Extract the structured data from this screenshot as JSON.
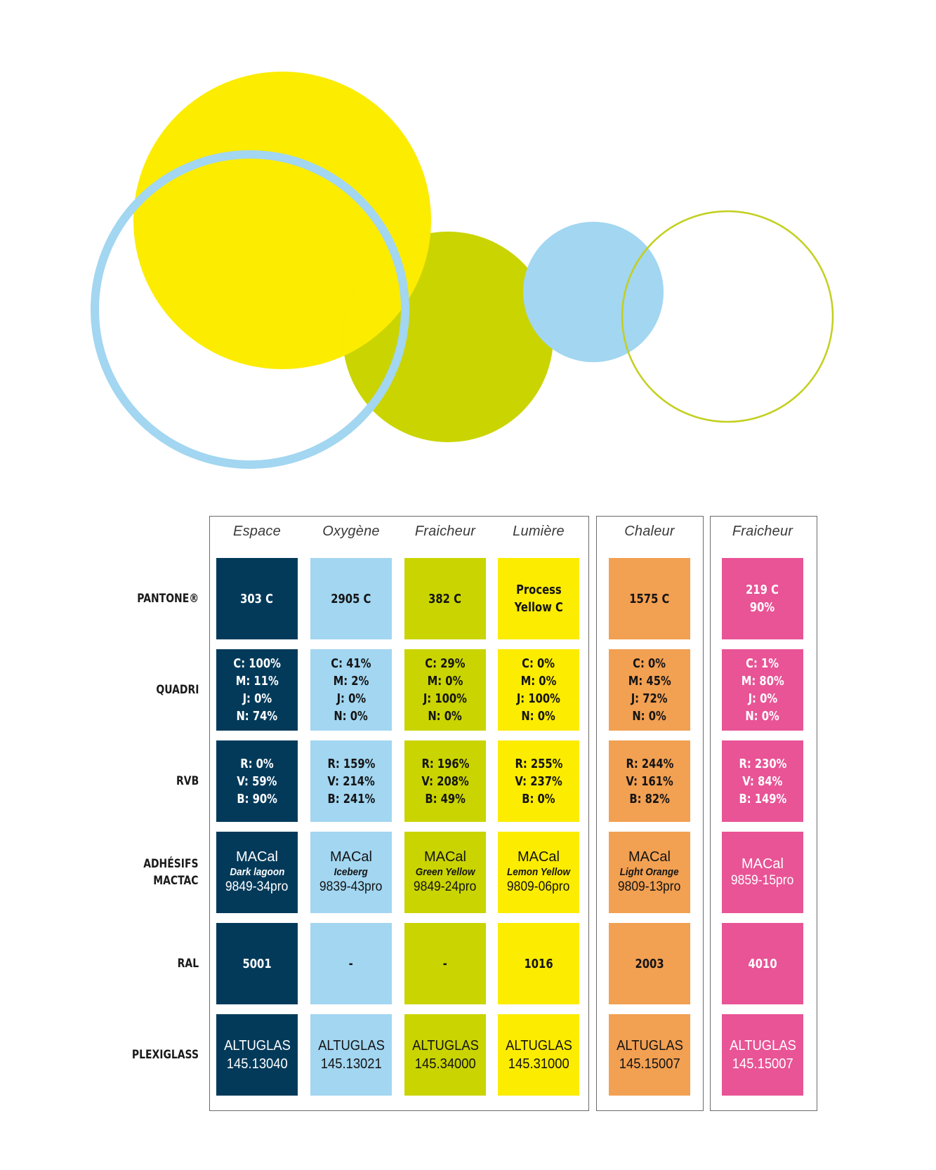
{
  "colors": {
    "navy": "#033a5a",
    "sky": "#a2d6f1",
    "lime": "#cad400",
    "yellow": "#fcec00",
    "orange": "#f2a052",
    "pink": "#e85496",
    "border": "#6b6b6b"
  },
  "row_labels": [
    {
      "id": "pantone",
      "lines": [
        "PANTONE®"
      ]
    },
    {
      "id": "quadri",
      "lines": [
        "QUADRI"
      ]
    },
    {
      "id": "rvb",
      "lines": [
        "RVB"
      ]
    },
    {
      "id": "adhesifs",
      "lines": [
        "ADHÉSIFS",
        "MACTAC"
      ]
    },
    {
      "id": "ral",
      "lines": [
        "RAL"
      ]
    },
    {
      "id": "plexiglass",
      "lines": [
        "PLEXIGLASS"
      ]
    }
  ],
  "columns": [
    {
      "name": "Espace",
      "color": "#033a5a",
      "text_color": "#ffffff",
      "pantone": [
        "303 C"
      ],
      "quadri": [
        "C: 100%",
        "M: 11%",
        "J: 0%",
        "N: 74%"
      ],
      "rvb": [
        "R: 0%",
        "V: 59%",
        "B: 90%"
      ],
      "macal": {
        "brand": "MACal",
        "name": "Dark lagoon",
        "ref": "9849-34pro"
      },
      "ral": "5001",
      "plexi": [
        "ALTUGLAS",
        "145.13040"
      ]
    },
    {
      "name": "Oxygène",
      "color": "#a2d6f1",
      "text_color": "#141414",
      "pantone": [
        "2905 C"
      ],
      "quadri": [
        "C: 41%",
        "M: 2%",
        "J: 0%",
        "N: 0%"
      ],
      "rvb": [
        "R: 159%",
        "V: 214%",
        "B: 241%"
      ],
      "macal": {
        "brand": "MACal",
        "name": "Iceberg",
        "ref": "9839-43pro"
      },
      "ral": "-",
      "plexi": [
        "ALTUGLAS",
        "145.13021"
      ]
    },
    {
      "name": "Fraicheur",
      "color": "#cad400",
      "text_color": "#141414",
      "pantone": [
        "382 C"
      ],
      "quadri": [
        "C: 29%",
        "M: 0%",
        "J: 100%",
        "N: 0%"
      ],
      "rvb": [
        "R: 196%",
        "V: 208%",
        "B: 49%"
      ],
      "macal": {
        "brand": "MACal",
        "name": "Green Yellow",
        "ref": "9849-24pro"
      },
      "ral": "-",
      "plexi": [
        "ALTUGLAS",
        "145.34000"
      ]
    },
    {
      "name": "Lumière",
      "color": "#fcec00",
      "text_color": "#141414",
      "pantone": [
        "Process",
        "Yellow C"
      ],
      "quadri": [
        "C: 0%",
        "M: 0%",
        "J: 100%",
        "N: 0%"
      ],
      "rvb": [
        "R: 255%",
        "V: 237%",
        "B: 0%"
      ],
      "macal": {
        "brand": "MACal",
        "name": "Lemon Yellow",
        "ref": "9809-06pro"
      },
      "ral": "1016",
      "plexi": [
        "ALTUGLAS",
        "145.31000"
      ]
    },
    {
      "name": "Chaleur",
      "color": "#f2a052",
      "text_color": "#141414",
      "pantone": [
        "1575 C"
      ],
      "quadri": [
        "C: 0%",
        "M: 45%",
        "J: 72%",
        "N: 0%"
      ],
      "rvb": [
        "R: 244%",
        "V: 161%",
        "B: 82%"
      ],
      "macal": {
        "brand": "MACal",
        "name": "Light Orange",
        "ref": "9809-13pro"
      },
      "ral": "2003",
      "plexi": [
        "ALTUGLAS",
        "145.15007"
      ]
    },
    {
      "name": "Fraicheur",
      "color": "#e85496",
      "text_color": "#ffffff",
      "pantone": [
        "219 C",
        "90%"
      ],
      "quadri": [
        "C: 1%",
        "M: 80%",
        "J: 0%",
        "N: 0%"
      ],
      "rvb": [
        "R: 230%",
        "V: 84%",
        "B: 149%"
      ],
      "macal": {
        "brand": "MACal",
        "name": "",
        "ref": "9859-15pro"
      },
      "ral": "4010",
      "plexi": [
        "ALTUGLAS",
        "145.15007"
      ]
    }
  ]
}
